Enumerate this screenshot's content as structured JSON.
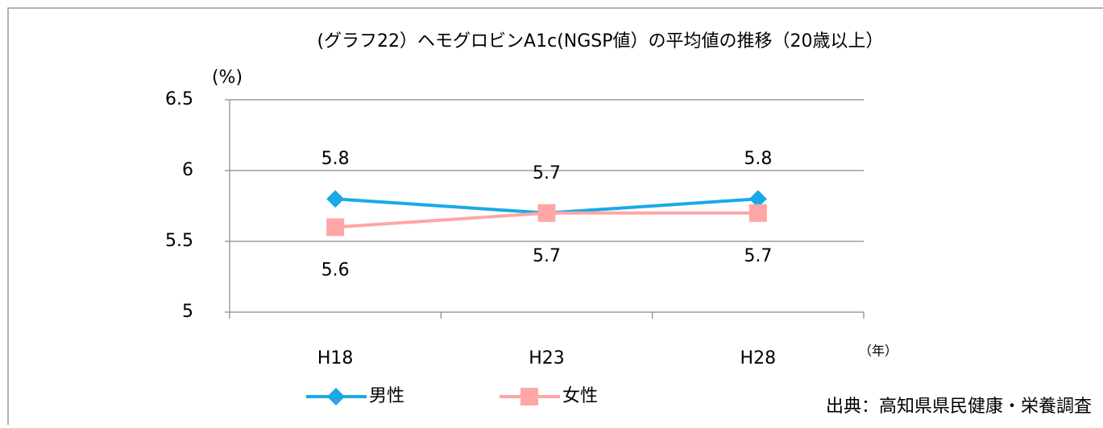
{
  "chart_data": {
    "type": "line",
    "title": "(グラフ22）ヘモグロビンA1c(NGSP値）の平均値の推移（20歳以上）",
    "y_label": "(%)",
    "x_label": "（年）",
    "source": "出典：高知県県民健康・栄養調査",
    "categories": [
      "H18",
      "H23",
      "H28"
    ],
    "series": [
      {
        "name": "男性",
        "color": "#1aa9e6",
        "marker": "diamond",
        "values": [
          5.8,
          5.7,
          5.8
        ]
      },
      {
        "name": "女性",
        "color": "#ffa6a6",
        "marker": "square",
        "values": [
          5.6,
          5.7,
          5.7
        ]
      }
    ],
    "ylim": [
      5,
      6.5
    ],
    "yticks": [
      5,
      5.5,
      6,
      6.5
    ],
    "grid": true,
    "legend": "bottom"
  }
}
